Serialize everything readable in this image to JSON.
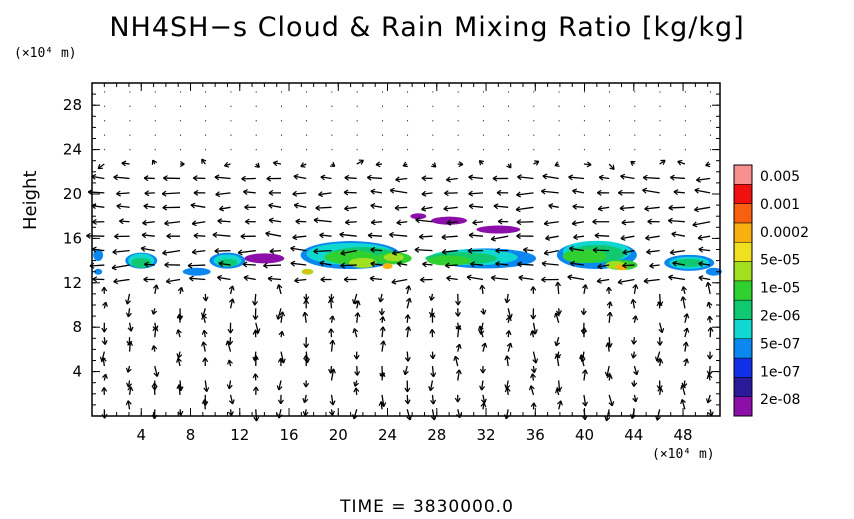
{
  "chart_data": {
    "type": "heatmap",
    "title": "NH4SH−s Cloud & Rain Mixing Ratio [kg/kg]",
    "ylabel": "Height",
    "y_unit": "(×10⁴ m)",
    "x_unit": "(×10⁴ m)",
    "time_label": "TIME = 3830000.0",
    "xlim": [
      0,
      51
    ],
    "ylim": [
      0,
      30
    ],
    "x_ticks": [
      "4",
      "8",
      "12",
      "16",
      "20",
      "24",
      "28",
      "32",
      "36",
      "40",
      "44",
      "48"
    ],
    "y_ticks": [
      "4",
      "8",
      "12",
      "16",
      "20",
      "24",
      "28"
    ],
    "colorbar": {
      "labels": [
        "0.005",
        "0.001",
        "0.0002",
        "5e-05",
        "1e-05",
        "2e-06",
        "5e-07",
        "1e-07",
        "2e-08"
      ],
      "colors": [
        "#8B0FA8",
        "#2A1A9A",
        "#1030E8",
        "#0A88F0",
        "#10D8D0",
        "#10C870",
        "#30D030",
        "#A0E020",
        "#F0E020",
        "#F8B010",
        "#F86010",
        "#F01010",
        "#F89090"
      ]
    },
    "cloud_layers": [
      {
        "x_start": 0,
        "x_end": 51,
        "y_bottom": 12.5,
        "y_top": 16.5,
        "description_level": "1e-05 to 5e-05, peaks ~0.0002"
      },
      {
        "x_start": 25,
        "x_end": 38,
        "y_bottom": 16,
        "y_top": 18.5,
        "description_level": "2e-08"
      }
    ]
  }
}
